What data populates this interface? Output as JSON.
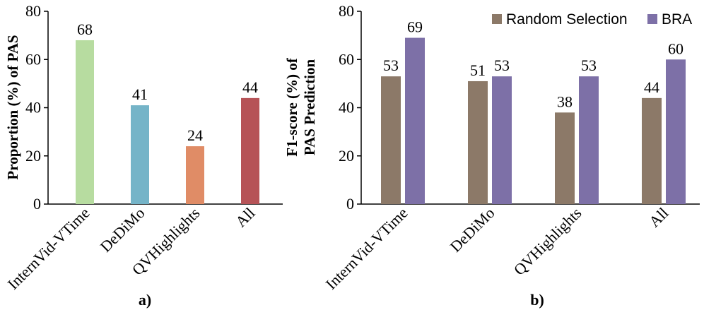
{
  "chart_data": [
    {
      "type": "bar",
      "panel_label": "a)",
      "ylabel": "Proportion (%) of PAS",
      "xlabel": "",
      "ylim": [
        0,
        80
      ],
      "yticks": [
        0,
        20,
        40,
        60,
        80
      ],
      "categories": [
        "InternVid-VTime",
        "DeDiMo",
        "QVHighlights",
        "All"
      ],
      "values": [
        68,
        41,
        24,
        44
      ],
      "bar_colors": [
        "#b7dca0",
        "#75b4c8",
        "#e08c66",
        "#b65357"
      ],
      "legend": null
    },
    {
      "type": "bar",
      "panel_label": "b)",
      "ylabel": "F1-score (%) of PAS Prediction",
      "ylabel_lines": [
        "F1-score (%) of",
        "PAS Prediction"
      ],
      "xlabel": "",
      "ylim": [
        0,
        80
      ],
      "yticks": [
        0,
        20,
        40,
        60,
        80
      ],
      "categories": [
        "InternVid-VTime",
        "DeDiMo",
        "QVHighlights",
        "All"
      ],
      "series": [
        {
          "name": "Random Selection",
          "values": [
            53,
            51,
            38,
            44
          ],
          "color": "#8c7968"
        },
        {
          "name": "BRA",
          "values": [
            69,
            53,
            53,
            60
          ],
          "color": "#7d70a7"
        }
      ],
      "legend": "top-right"
    }
  ]
}
